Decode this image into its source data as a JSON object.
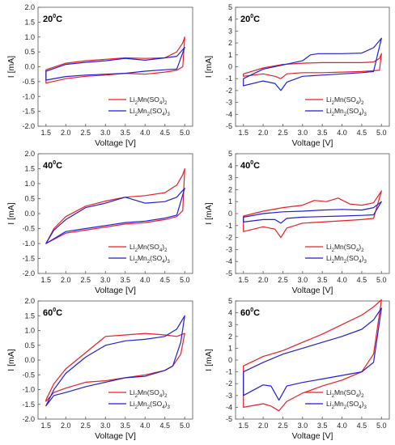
{
  "chart_data": [
    {
      "type": "line",
      "temp_label": "20",
      "temp_sup": "0",
      "temp_unit": "C",
      "xlabel": "Voltage [V]",
      "ylabel": "I [mA]",
      "xlim": [
        1.3,
        5.2
      ],
      "ylim": [
        -2.0,
        2.0
      ],
      "xticks": [
        "1.5",
        "2.0",
        "2.5",
        "3.0",
        "3.5",
        "4.0",
        "4.5",
        "5.0"
      ],
      "yticks": [
        "2.0",
        "1.5",
        "1.0",
        "0.5",
        "0.0",
        "-0.5",
        "-1.0",
        "-1.5",
        "-2.0"
      ],
      "series": [
        {
          "name_main": "Li",
          "name_sub1": "2",
          "name_mid": "Mn(SO",
          "name_sub2": "4",
          "name_end": ")",
          "name_sub3": "2",
          "color": "#ee1c25",
          "x": [
            1.5,
            2.0,
            2.5,
            3.0,
            3.5,
            4.0,
            4.5,
            4.8,
            4.95,
            5.0,
            4.95,
            4.8,
            4.5,
            4.0,
            3.5,
            3.0,
            2.5,
            2.0,
            1.5
          ],
          "y": [
            -0.1,
            0.12,
            0.2,
            0.25,
            0.3,
            0.28,
            0.3,
            0.5,
            0.8,
            1.0,
            0.0,
            -0.12,
            -0.18,
            -0.25,
            -0.22,
            -0.28,
            -0.32,
            -0.4,
            -0.55
          ]
        },
        {
          "name_main": "Li",
          "name_sub1": "2",
          "name_mid": "Mn",
          "name_sub2": "2",
          "name_end": "(SO",
          "name_sub3": "4",
          "name_end2": ")",
          "name_sub4": "3",
          "color": "#1f1fd8",
          "x": [
            1.5,
            2.0,
            2.5,
            3.0,
            3.5,
            4.0,
            4.5,
            4.8,
            5.0,
            4.8,
            4.5,
            4.0,
            3.5,
            3.0,
            2.5,
            2.0,
            1.5
          ],
          "y": [
            -0.15,
            0.08,
            0.15,
            0.2,
            0.28,
            0.22,
            0.3,
            0.35,
            0.65,
            -0.08,
            -0.1,
            -0.15,
            -0.22,
            -0.25,
            -0.28,
            -0.33,
            -0.45
          ]
        }
      ]
    },
    {
      "type": "line",
      "temp_label": "20",
      "temp_sup": "0",
      "temp_unit": "C",
      "xlabel": "Voltage [V]",
      "ylabel": "I [mA]",
      "xlim": [
        1.3,
        5.2
      ],
      "ylim": [
        -5,
        5
      ],
      "xticks": [
        "1.5",
        "2.0",
        "2.5",
        "3.0",
        "3.5",
        "4.0",
        "4.5",
        "5.0"
      ],
      "yticks": [
        "5",
        "4",
        "3",
        "2",
        "1",
        "0",
        "-1",
        "-2",
        "-3",
        "-4",
        "-5"
      ],
      "series": [
        {
          "name_main": "Li",
          "name_sub1": "2",
          "name_mid": "Mn(SO",
          "name_sub2": "4",
          "name_end": ")",
          "name_sub3": "2",
          "color": "#ee1c25",
          "x": [
            1.5,
            2.0,
            2.5,
            3.0,
            3.5,
            4.0,
            4.5,
            4.8,
            4.95,
            5.0,
            4.95,
            4.5,
            4.0,
            3.5,
            3.0,
            2.6,
            2.45,
            2.3,
            2.0,
            1.5
          ],
          "y": [
            -0.6,
            -0.1,
            0.2,
            0.3,
            0.35,
            0.35,
            0.35,
            0.4,
            0.7,
            1.1,
            -0.3,
            -0.4,
            -0.45,
            -0.5,
            -0.5,
            -0.6,
            -1.0,
            -0.8,
            -0.6,
            -0.8
          ]
        },
        {
          "name_main": "Li",
          "name_sub1": "2",
          "name_mid": "Mn",
          "name_sub2": "2",
          "name_end": "(SO",
          "name_sub3": "4",
          "name_end2": ")",
          "name_sub4": "3",
          "color": "#1f1fd8",
          "x": [
            1.5,
            2.0,
            2.5,
            3.0,
            3.2,
            3.4,
            4.0,
            4.5,
            4.8,
            5.0,
            4.8,
            4.5,
            4.0,
            3.5,
            3.0,
            2.6,
            2.45,
            2.3,
            2.0,
            1.5
          ],
          "y": [
            -1.0,
            -0.2,
            0.15,
            0.5,
            1.0,
            1.1,
            1.1,
            1.15,
            1.6,
            2.4,
            -0.4,
            -0.5,
            -0.6,
            -0.7,
            -0.8,
            -1.3,
            -2.0,
            -1.4,
            -1.2,
            -1.6
          ]
        }
      ]
    },
    {
      "type": "line",
      "temp_label": "40",
      "temp_sup": "0",
      "temp_unit": "C",
      "xlabel": "Voltage [V]",
      "ylabel": "I [mA]",
      "xlim": [
        1.3,
        5.2
      ],
      "ylim": [
        -2.0,
        2.0
      ],
      "xticks": [
        "1.5",
        "2.0",
        "2.5",
        "3.0",
        "3.5",
        "4.0",
        "4.5",
        "5.0"
      ],
      "yticks": [
        "2.0",
        "1.5",
        "1.0",
        "0.5",
        "0.0",
        "-0.5",
        "-1.0",
        "-1.5",
        "-2.0"
      ],
      "series": [
        {
          "name_main": "Li",
          "name_sub1": "2",
          "name_mid": "Mn(SO",
          "name_sub2": "4",
          "name_end": ")",
          "name_sub3": "2",
          "color": "#ee1c25",
          "x": [
            1.5,
            1.7,
            2.0,
            2.5,
            3.0,
            3.5,
            4.0,
            4.5,
            4.8,
            4.95,
            5.0,
            4.95,
            4.8,
            4.5,
            4.0,
            3.5,
            3.0,
            2.5,
            2.0,
            1.5
          ],
          "y": [
            -1.0,
            -0.5,
            -0.1,
            0.25,
            0.42,
            0.55,
            0.6,
            0.7,
            0.95,
            1.3,
            1.5,
            0.1,
            -0.1,
            -0.2,
            -0.3,
            -0.35,
            -0.45,
            -0.55,
            -0.65,
            -1.0
          ]
        },
        {
          "name_main": "Li",
          "name_sub1": "2",
          "name_mid": "Mn",
          "name_sub2": "2",
          "name_end": "(SO",
          "name_sub3": "4",
          "name_end2": ")",
          "name_sub4": "3",
          "color": "#1f1fd8",
          "x": [
            1.5,
            1.7,
            2.0,
            2.5,
            3.0,
            3.5,
            4.0,
            4.5,
            4.8,
            5.0,
            4.8,
            4.5,
            4.0,
            3.5,
            3.0,
            2.5,
            2.0,
            1.5
          ],
          "y": [
            -1.0,
            -0.55,
            -0.2,
            0.2,
            0.35,
            0.55,
            0.35,
            0.4,
            0.55,
            0.85,
            -0.05,
            -0.15,
            -0.25,
            -0.3,
            -0.4,
            -0.5,
            -0.6,
            -1.0
          ]
        }
      ]
    },
    {
      "type": "line",
      "temp_label": "40",
      "temp_sup": "0",
      "temp_unit": "C",
      "xlabel": "Voltage [V]",
      "ylabel": "I [mA]",
      "xlim": [
        1.3,
        5.2
      ],
      "ylim": [
        -5,
        5
      ],
      "xticks": [
        "1.5",
        "2.0",
        "2.5",
        "3.0",
        "3.5",
        "4.0",
        "4.5",
        "5.0"
      ],
      "yticks": [
        "5",
        "4",
        "3",
        "2",
        "1",
        "0",
        "-1",
        "-2",
        "-3",
        "-4",
        "-5"
      ],
      "series": [
        {
          "name_main": "Li",
          "name_sub1": "2",
          "name_mid": "Mn(SO",
          "name_sub2": "4",
          "name_end": ")",
          "name_sub3": "2",
          "color": "#ee1c25",
          "x": [
            1.5,
            2.0,
            2.5,
            3.0,
            3.3,
            3.6,
            3.9,
            4.2,
            4.5,
            4.8,
            5.0,
            4.8,
            4.5,
            4.0,
            3.5,
            3.0,
            2.6,
            2.45,
            2.3,
            2.0,
            1.5
          ],
          "y": [
            -0.2,
            0.2,
            0.5,
            0.7,
            1.1,
            1.0,
            1.3,
            0.8,
            0.7,
            0.9,
            1.9,
            -0.4,
            -0.5,
            -0.6,
            -0.7,
            -0.8,
            -1.2,
            -2.0,
            -1.3,
            -1.1,
            -1.5
          ]
        },
        {
          "name_main": "Li",
          "name_sub1": "2",
          "name_mid": "Mn",
          "name_sub2": "2",
          "name_end": "(SO",
          "name_sub3": "4",
          "name_end2": ")",
          "name_sub4": "3",
          "color": "#1f1fd8",
          "x": [
            1.5,
            2.0,
            2.5,
            3.0,
            3.5,
            4.0,
            4.5,
            4.8,
            5.0,
            4.8,
            4.5,
            4.0,
            3.5,
            3.0,
            2.6,
            2.45,
            2.3,
            2.0,
            1.5
          ],
          "y": [
            -0.3,
            0.0,
            0.15,
            0.2,
            0.3,
            0.35,
            0.3,
            0.5,
            1.0,
            -0.1,
            -0.15,
            -0.2,
            -0.25,
            -0.3,
            -0.4,
            -0.8,
            -0.5,
            -0.5,
            -0.7
          ]
        }
      ]
    },
    {
      "type": "line",
      "temp_label": "60",
      "temp_sup": "0",
      "temp_unit": "C",
      "xlabel": "Voltage [V]",
      "ylabel": "I [mA]",
      "xlim": [
        1.3,
        5.2
      ],
      "ylim": [
        -2.0,
        2.0
      ],
      "xticks": [
        "1.5",
        "2.0",
        "2.5",
        "3.0",
        "3.5",
        "4.0",
        "4.5",
        "5.0"
      ],
      "yticks": [
        "2.0",
        "1.5",
        "1.0",
        "0.5",
        "0.0",
        "-0.5",
        "-1.0",
        "-1.5",
        "-2.0"
      ],
      "series": [
        {
          "name_main": "Li",
          "name_sub1": "2",
          "name_mid": "Mn(SO",
          "name_sub2": "4",
          "name_end": ")",
          "name_sub3": "2",
          "color": "#ee1c25",
          "x": [
            1.5,
            1.7,
            2.0,
            2.5,
            3.0,
            3.5,
            4.0,
            4.5,
            4.8,
            5.0,
            4.9,
            4.7,
            4.5,
            4.0,
            3.5,
            3.0,
            2.5,
            2.0,
            1.7,
            1.5
          ],
          "y": [
            -1.35,
            -0.8,
            -0.3,
            0.25,
            0.8,
            0.85,
            0.9,
            0.85,
            0.8,
            0.9,
            0.2,
            -0.2,
            -0.35,
            -0.5,
            -0.6,
            -0.7,
            -0.75,
            -0.95,
            -1.1,
            -1.4
          ]
        },
        {
          "name_main": "Li",
          "name_sub1": "2",
          "name_mid": "Mn",
          "name_sub2": "2",
          "name_end": "(SO",
          "name_sub3": "4",
          "name_end2": ")",
          "name_sub4": "3",
          "color": "#1f1fd8",
          "x": [
            1.5,
            1.7,
            2.0,
            2.5,
            3.0,
            3.5,
            4.0,
            4.5,
            4.8,
            5.0,
            4.9,
            4.7,
            4.5,
            4.0,
            3.5,
            3.0,
            2.5,
            2.0,
            1.7,
            1.5
          ],
          "y": [
            -1.55,
            -1.0,
            -0.45,
            0.1,
            0.5,
            0.65,
            0.7,
            0.8,
            1.05,
            1.5,
            0.6,
            -0.2,
            -0.35,
            -0.55,
            -0.6,
            -0.75,
            -0.9,
            -1.1,
            -1.2,
            -1.55
          ]
        }
      ]
    },
    {
      "type": "line",
      "temp_label": "60",
      "temp_sup": "0",
      "temp_unit": "C",
      "xlabel": "Voltage [V]",
      "ylabel": "I [mA]",
      "xlim": [
        1.3,
        5.2
      ],
      "ylim": [
        -5,
        5
      ],
      "xticks": [
        "1.5",
        "2.0",
        "2.5",
        "3.0",
        "3.5",
        "4.0",
        "4.5",
        "5.0"
      ],
      "yticks": [
        "5",
        "4",
        "3",
        "2",
        "1",
        "0",
        "-1",
        "-2",
        "-3",
        "-4",
        "-5"
      ],
      "series": [
        {
          "name_main": "Li",
          "name_sub1": "2",
          "name_mid": "Mn(SO",
          "name_sub2": "4",
          "name_end": ")",
          "name_sub3": "2",
          "color": "#ee1c25",
          "x": [
            1.5,
            2.0,
            2.5,
            3.0,
            3.5,
            4.0,
            4.5,
            4.8,
            5.0,
            4.8,
            4.5,
            4.0,
            3.5,
            3.0,
            2.6,
            2.4,
            2.2,
            2.0,
            1.5
          ],
          "y": [
            -0.5,
            0.3,
            0.8,
            1.5,
            2.2,
            3.0,
            3.8,
            4.5,
            5.1,
            0.5,
            -1.0,
            -1.7,
            -2.2,
            -2.8,
            -3.5,
            -4.3,
            -3.9,
            -3.7,
            -4.0
          ]
        },
        {
          "name_main": "Li",
          "name_sub1": "2",
          "name_mid": "Mn",
          "name_sub2": "2",
          "name_end": "(SO",
          "name_sub3": "4",
          "name_end2": ")",
          "name_sub4": "3",
          "color": "#1f1fd8",
          "x": [
            1.5,
            2.0,
            2.5,
            3.0,
            3.5,
            4.0,
            4.5,
            4.8,
            5.0,
            4.8,
            4.5,
            4.0,
            3.5,
            3.0,
            2.6,
            2.4,
            2.2,
            2.0,
            1.5
          ],
          "y": [
            -1.0,
            -0.2,
            0.5,
            1.0,
            1.5,
            2.0,
            2.6,
            3.4,
            4.4,
            -0.2,
            -1.0,
            -1.3,
            -1.6,
            -1.9,
            -2.2,
            -3.4,
            -2.2,
            -2.1,
            -3.0
          ]
        }
      ]
    }
  ]
}
